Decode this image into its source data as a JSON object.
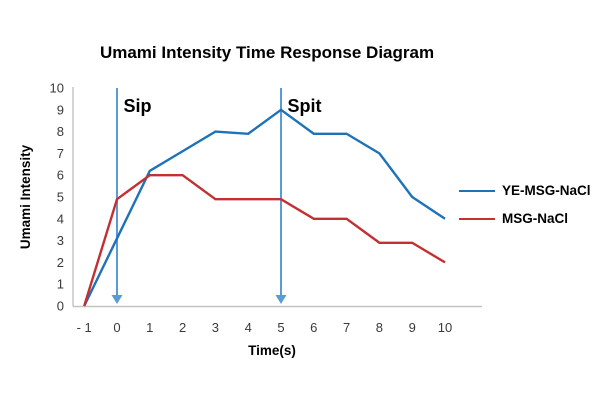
{
  "chart_data": {
    "type": "line",
    "title": "Umami Intensity Time Response Diagram",
    "xlabel": "Time(s)",
    "ylabel": "Umami Intensity",
    "x": [
      -1,
      0,
      1,
      2,
      3,
      4,
      5,
      6,
      7,
      8,
      9,
      10
    ],
    "x_tick_labels": [
      "- 1",
      "0",
      "1",
      "2",
      "3",
      "4",
      "5",
      "6",
      "7",
      "8",
      "9",
      "10"
    ],
    "y_ticks": [
      0,
      1,
      2,
      3,
      4,
      5,
      6,
      7,
      8,
      9,
      10
    ],
    "ylim": [
      0,
      10
    ],
    "grid": false,
    "legend_position": "right",
    "series": [
      {
        "name": "YE-MSG-NaCl",
        "color": "#1E72B8",
        "values": [
          0,
          3.1,
          6.2,
          7.1,
          8.0,
          7.9,
          9.0,
          7.9,
          7.9,
          7.0,
          5.0,
          4.0
        ]
      },
      {
        "name": "MSG-NaCl",
        "color": "#C23032",
        "values": [
          0,
          4.9,
          6.0,
          6.0,
          4.9,
          4.9,
          4.9,
          4.0,
          4.0,
          2.9,
          2.9,
          2.0
        ]
      }
    ],
    "annotations": [
      {
        "label": "Sip",
        "x": 0,
        "arrow_color": "#5B9BD5"
      },
      {
        "label": "Spit",
        "x": 5,
        "arrow_color": "#5B9BD5"
      }
    ]
  }
}
